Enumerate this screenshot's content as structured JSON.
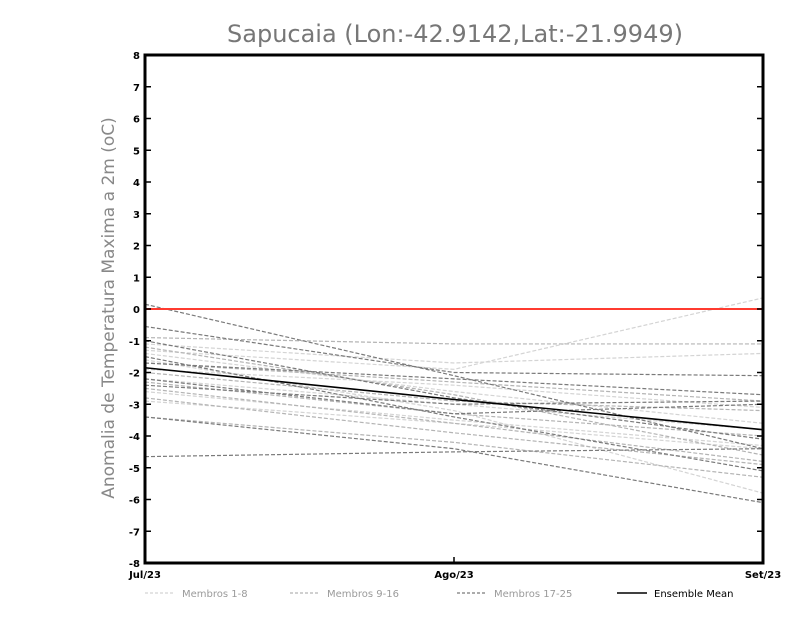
{
  "chart_data": {
    "type": "line",
    "title": "Sapucaia (Lon:-42.9142,Lat:-21.9949)",
    "xlabel": "",
    "ylabel": "Anomalia de Temperatura Maxima a 2m (oC)",
    "x": [
      "Jul/23",
      "Ago/23",
      "Set/23"
    ],
    "ylim": [
      -8,
      8
    ],
    "yticks": [
      "8",
      "7",
      "6",
      "5",
      "4",
      "3",
      "2",
      "1",
      "0",
      "-1",
      "-2",
      "-3",
      "-4",
      "-5",
      "-6",
      "-7",
      "-8"
    ],
    "reference_line": {
      "y": 0,
      "color": "#ff3b30"
    },
    "colors": {
      "group1": "#d4d4d4",
      "group2": "#b4b4b4",
      "group3": "#7a7a7a",
      "mean": "#000000"
    },
    "legend": [
      {
        "label": "Membros 1-8",
        "group": "group1"
      },
      {
        "label": "Membros 9-16",
        "group": "group2"
      },
      {
        "label": "Membros 17-25",
        "group": "group3"
      },
      {
        "label": "Ensemble Mean",
        "group": "mean"
      }
    ],
    "series": [
      {
        "name": "Membro 1",
        "group": "group1",
        "values": [
          -1.3,
          -1.9,
          0.35
        ]
      },
      {
        "name": "Membro 2",
        "group": "group1",
        "values": [
          -1.1,
          -1.7,
          -1.4
        ]
      },
      {
        "name": "Membro 3",
        "group": "group1",
        "values": [
          -2.2,
          -3.0,
          -3.8
        ]
      },
      {
        "name": "Membro 4",
        "group": "group1",
        "values": [
          -1.4,
          -2.6,
          -3.6
        ]
      },
      {
        "name": "Membro 5",
        "group": "group1",
        "values": [
          -2.6,
          -3.5,
          -4.3
        ]
      },
      {
        "name": "Membro 6",
        "group": "group1",
        "values": [
          -1.9,
          -2.4,
          -3.1
        ]
      },
      {
        "name": "Membro 7",
        "group": "group1",
        "values": [
          -2.9,
          -3.6,
          -4.4
        ]
      },
      {
        "name": "Membro 8",
        "group": "group1",
        "values": [
          -1.6,
          -3.2,
          -5.8
        ]
      },
      {
        "name": "Membro 9",
        "group": "group2",
        "values": [
          -0.9,
          -1.1,
          -1.1
        ]
      },
      {
        "name": "Membro 10",
        "group": "group2",
        "values": [
          -2.0,
          -2.9,
          -3.2
        ]
      },
      {
        "name": "Membro 11",
        "group": "group2",
        "values": [
          -2.3,
          -3.3,
          -4.0
        ]
      },
      {
        "name": "Membro 12",
        "group": "group2",
        "values": [
          -1.2,
          -2.7,
          -4.6
        ]
      },
      {
        "name": "Membro 13",
        "group": "group2",
        "values": [
          -2.8,
          -3.9,
          -4.9
        ]
      },
      {
        "name": "Membro 14",
        "group": "group2",
        "values": [
          -1.7,
          -2.3,
          -2.9
        ]
      },
      {
        "name": "Membro 15",
        "group": "group2",
        "values": [
          -3.4,
          -4.2,
          -5.3
        ]
      },
      {
        "name": "Membro 16",
        "group": "group2",
        "values": [
          -2.5,
          -3.6,
          -4.8
        ]
      },
      {
        "name": "Membro 17",
        "group": "group3",
        "values": [
          0.15,
          -2.1,
          -4.4
        ]
      },
      {
        "name": "Membro 18",
        "group": "group3",
        "values": [
          -0.55,
          -2.0,
          -2.1
        ]
      },
      {
        "name": "Membro 19",
        "group": "group3",
        "values": [
          -4.65,
          -4.5,
          -4.4
        ]
      },
      {
        "name": "Membro 20",
        "group": "group3",
        "values": [
          -1.7,
          -2.2,
          -2.7
        ]
      },
      {
        "name": "Membro 21",
        "group": "group3",
        "values": [
          -2.4,
          -3.0,
          -2.9
        ]
      },
      {
        "name": "Membro 22",
        "group": "group3",
        "values": [
          -3.4,
          -4.4,
          -6.1
        ]
      },
      {
        "name": "Membro 23",
        "group": "group3",
        "values": [
          -1.0,
          -2.8,
          -4.1
        ]
      },
      {
        "name": "Membro 24",
        "group": "group3",
        "values": [
          -2.2,
          -3.3,
          -3.0
        ]
      },
      {
        "name": "Membro 25",
        "group": "group3",
        "values": [
          -1.5,
          -3.4,
          -5.1
        ]
      },
      {
        "name": "Ensemble Mean",
        "group": "mean",
        "values": [
          -1.85,
          -2.85,
          -3.8
        ]
      }
    ]
  }
}
